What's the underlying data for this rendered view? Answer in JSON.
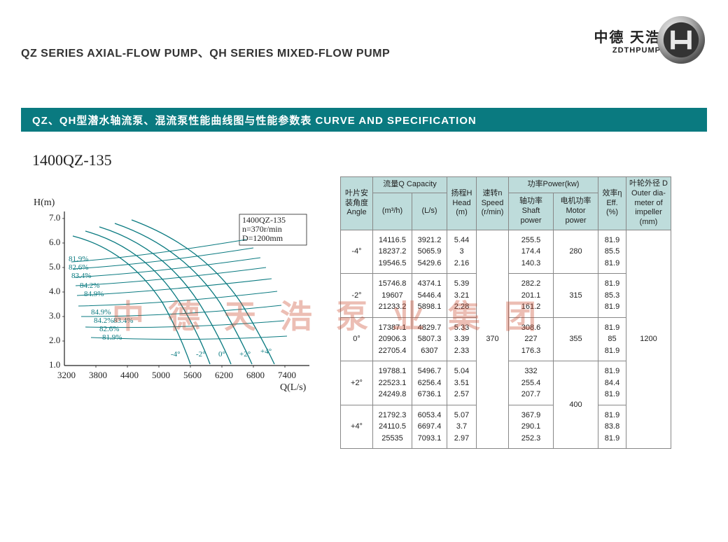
{
  "header": {
    "page_title": "QZ SERIES AXIAL-FLOW PUMP、QH SERIES MIXED-FLOW PUMP",
    "brand_cn": "中德 天浩",
    "brand_en": "ZDTHPUMP",
    "section_bar": "QZ、QH型潜水轴流泵、混流泵性能曲线图与性能参数表  CURVE AND SPECIFICATION",
    "model": "1400QZ-135"
  },
  "watermark": "中德天浩泵业集团",
  "chart": {
    "model_label": "1400QZ-135",
    "speed_label": "n=370r/min",
    "diam_label": "D=1200mm",
    "y_axis_label": "H(m)",
    "x_axis_label": "Q(L/s)",
    "y_ticks": [
      "1.0",
      "2.0",
      "3.0",
      "4.0",
      "5.0",
      "6.0",
      "7.0"
    ],
    "x_ticks": [
      "3200",
      "3800",
      "4400",
      "5000",
      "5600",
      "6200",
      "6800",
      "7400"
    ],
    "angle_labels": [
      "-4°",
      "-2°",
      "0°",
      "+2°",
      "+4°"
    ],
    "eff_labels": [
      "81.9%",
      "82.6%",
      "83.4%",
      "84.2%",
      "84.9%",
      "84.9%",
      "84.2%",
      "83.4%",
      "82.6%",
      "81.9%"
    ],
    "colors": {
      "axis": "#222222",
      "curves": "#0a7a80",
      "grid": "#d0d0d0"
    }
  },
  "table": {
    "col_headers": {
      "angle": "叶片安\n装角度\nAngle",
      "capacity_g": "流量Q Capacity",
      "m3h": "(m³/h)",
      "ls": "(L/s)",
      "head": "扬程H\nHead\n(m)",
      "speed": "速转n\nSpeed\n(r/min)",
      "power_g": "功率Power(kw)",
      "shaft": "轴功率\nShaft power",
      "motor": "电机功率\nMotor power",
      "eff": "效率η\nEff.\n(%)",
      "imp": "叶轮外径 D\nOuter dia-\nmeter of\nimpeller\n(mm)"
    },
    "rows": [
      {
        "angle": "-4°",
        "m3h": [
          "14116.5",
          "18237.2",
          "19546.5"
        ],
        "ls": [
          "3921.2",
          "5065.9",
          "5429.6"
        ],
        "head": [
          "5.44",
          "3",
          "2.16"
        ],
        "shaft": [
          "255.5",
          "174.4",
          "140.3"
        ],
        "motor": "280",
        "eff": [
          "81.9",
          "85.5",
          "81.9"
        ]
      },
      {
        "angle": "-2°",
        "m3h": [
          "15746.8",
          "19607",
          "21233.2"
        ],
        "ls": [
          "4374.1",
          "5446.4",
          "5898.1"
        ],
        "head": [
          "5.39",
          "3.21",
          "2.28"
        ],
        "shaft": [
          "282.2",
          "201.1",
          "161.2"
        ],
        "motor": "315",
        "eff": [
          "81.9",
          "85.3",
          "81.9"
        ]
      },
      {
        "angle": "0°",
        "m3h": [
          "17387.1",
          "20906.3",
          "22705.4"
        ],
        "ls": [
          "4829.7",
          "5807.3",
          "6307"
        ],
        "head": [
          "5.33",
          "3.39",
          "2.33"
        ],
        "shaft": [
          "308.6",
          "227",
          "176.3"
        ],
        "motor": "355",
        "eff": [
          "81.9",
          "85",
          "81.9"
        ]
      },
      {
        "angle": "+2°",
        "m3h": [
          "19788.1",
          "22523.1",
          "24249.8"
        ],
        "ls": [
          "5496.7",
          "6256.4",
          "6736.1"
        ],
        "head": [
          "5.04",
          "3.51",
          "2.57"
        ],
        "shaft": [
          "332",
          "255.4",
          "207.7"
        ],
        "motor_merge": "400",
        "eff": [
          "81.9",
          "84.4",
          "81.9"
        ]
      },
      {
        "angle": "+4°",
        "m3h": [
          "21792.3",
          "24110.5",
          "25535"
        ],
        "ls": [
          "6053.4",
          "6697.4",
          "7093.1"
        ],
        "head": [
          "5.07",
          "3.7",
          "2.97"
        ],
        "shaft": [
          "367.9",
          "290.1",
          "252.3"
        ],
        "eff": [
          "81.9",
          "83.8",
          "81.9"
        ]
      }
    ],
    "speed_merged": "370",
    "imp_merged": "1200"
  }
}
